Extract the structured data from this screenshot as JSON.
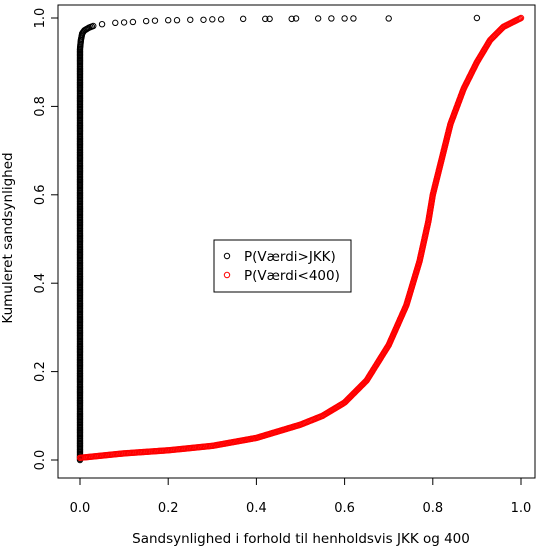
{
  "chart_data": {
    "type": "scatter",
    "title": "",
    "xlabel": "Sandsynlighed i forhold til henholdsvis JKK og 400",
    "ylabel": "Kumuleret sandsynlighed",
    "xlim": [
      0,
      1
    ],
    "ylim": [
      0,
      1
    ],
    "x_ticks": [
      "0.0",
      "0.2",
      "0.4",
      "0.6",
      "0.8",
      "1.0"
    ],
    "y_ticks": [
      "0.0",
      "0.2",
      "0.4",
      "0.6",
      "0.8",
      "1.0"
    ],
    "grid": false,
    "legend_position": "center",
    "series": [
      {
        "name": "P(Værdi>JKK)",
        "color": "#000000",
        "marker": "open-circle",
        "points": [
          [
            0.0,
            0.0
          ],
          [
            0.0,
            0.05
          ],
          [
            0.0,
            0.1
          ],
          [
            0.0,
            0.15
          ],
          [
            0.0,
            0.2
          ],
          [
            0.0,
            0.25
          ],
          [
            0.0,
            0.3
          ],
          [
            0.0,
            0.35
          ],
          [
            0.0,
            0.4
          ],
          [
            0.0,
            0.45
          ],
          [
            0.0,
            0.5
          ],
          [
            0.0,
            0.55
          ],
          [
            0.0,
            0.6
          ],
          [
            0.0,
            0.65
          ],
          [
            0.0,
            0.7
          ],
          [
            0.0,
            0.75
          ],
          [
            0.0,
            0.8
          ],
          [
            0.0,
            0.85
          ],
          [
            0.0,
            0.9
          ],
          [
            0.0,
            0.93
          ],
          [
            0.002,
            0.95
          ],
          [
            0.005,
            0.965
          ],
          [
            0.01,
            0.972
          ],
          [
            0.02,
            0.978
          ],
          [
            0.03,
            0.982
          ],
          [
            0.05,
            0.986
          ],
          [
            0.08,
            0.989
          ],
          [
            0.1,
            0.99
          ],
          [
            0.12,
            0.991
          ],
          [
            0.15,
            0.993
          ],
          [
            0.17,
            0.994
          ],
          [
            0.2,
            0.995
          ],
          [
            0.22,
            0.995
          ],
          [
            0.25,
            0.996
          ],
          [
            0.28,
            0.996
          ],
          [
            0.3,
            0.997
          ],
          [
            0.32,
            0.997
          ],
          [
            0.37,
            0.998
          ],
          [
            0.42,
            0.998
          ],
          [
            0.43,
            0.998
          ],
          [
            0.48,
            0.998
          ],
          [
            0.49,
            0.999
          ],
          [
            0.54,
            0.999
          ],
          [
            0.57,
            0.999
          ],
          [
            0.6,
            0.999
          ],
          [
            0.62,
            0.999
          ],
          [
            0.7,
            0.999
          ],
          [
            0.9,
            1.0
          ]
        ]
      },
      {
        "name": "P(Værdi<400)",
        "color": "#ff0000",
        "marker": "open-circle",
        "points": [
          [
            0.0,
            0.005
          ],
          [
            0.05,
            0.01
          ],
          [
            0.1,
            0.015
          ],
          [
            0.2,
            0.022
          ],
          [
            0.3,
            0.032
          ],
          [
            0.4,
            0.05
          ],
          [
            0.5,
            0.08
          ],
          [
            0.55,
            0.1
          ],
          [
            0.6,
            0.13
          ],
          [
            0.65,
            0.18
          ],
          [
            0.7,
            0.26
          ],
          [
            0.74,
            0.35
          ],
          [
            0.77,
            0.45
          ],
          [
            0.79,
            0.54
          ],
          [
            0.8,
            0.6
          ],
          [
            0.82,
            0.68
          ],
          [
            0.84,
            0.76
          ],
          [
            0.87,
            0.84
          ],
          [
            0.9,
            0.9
          ],
          [
            0.93,
            0.95
          ],
          [
            0.96,
            0.98
          ],
          [
            1.0,
            1.0
          ]
        ]
      }
    ]
  }
}
